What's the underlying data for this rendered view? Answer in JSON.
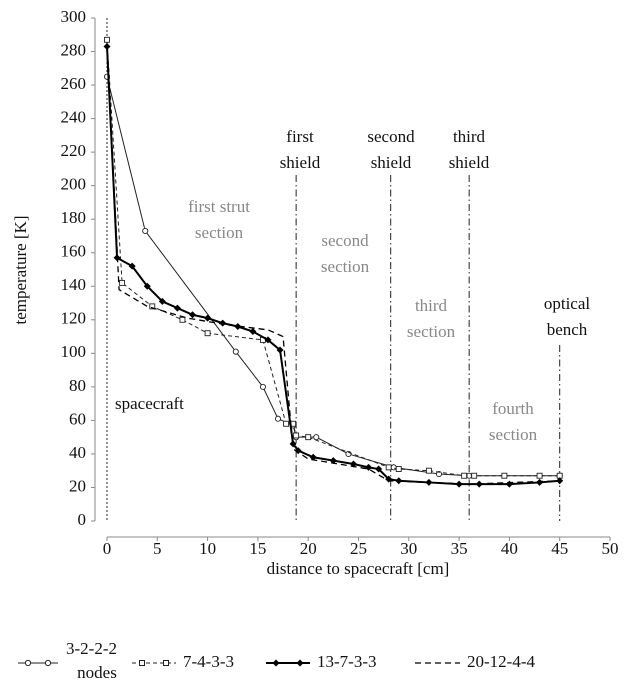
{
  "chart_data": {
    "type": "line",
    "x_label": "distance to spacecraft [cm]",
    "y_label": "temperature [K]",
    "xlim": [
      0,
      50
    ],
    "xticks": [
      0,
      5,
      10,
      15,
      20,
      25,
      30,
      35,
      40,
      45,
      50
    ],
    "ylim": [
      0,
      300
    ],
    "yticks": [
      0,
      20,
      40,
      60,
      80,
      100,
      120,
      140,
      160,
      180,
      200,
      220,
      240,
      260,
      280,
      300
    ],
    "legend_note": "nodes",
    "series": [
      {
        "name": "3-2-2-2",
        "color": "#222",
        "marker": "circle",
        "dash": "none",
        "width": 1,
        "x": [
          0,
          3.8,
          12.8,
          15.5,
          17,
          18.5,
          18.8,
          20.8,
          24,
          28.5,
          33,
          36,
          45
        ],
        "values": [
          265,
          173,
          101,
          80,
          61,
          57,
          50,
          50,
          40,
          32,
          28,
          27,
          27
        ]
      },
      {
        "name": "7-4-3-3",
        "color": "#222",
        "marker": "square",
        "dash": "4 3",
        "width": 1,
        "x": [
          0,
          1.5,
          4.5,
          7.5,
          10,
          15.5,
          17.8,
          18.5,
          18.8,
          20,
          28,
          29,
          32,
          35.5,
          36.5,
          39.5,
          43,
          45
        ],
        "values": [
          287,
          142,
          128,
          120,
          112,
          108,
          58,
          58,
          51,
          50,
          32,
          31,
          30,
          27,
          27,
          27,
          27,
          27
        ]
      },
      {
        "name": "13-7-3-3",
        "color": "#000",
        "marker": "diamond",
        "dash": "none",
        "width": 2,
        "x": [
          0,
          1,
          2.5,
          4,
          5.5,
          7,
          8.5,
          10,
          11.5,
          13,
          14.5,
          16,
          17.2,
          18.5,
          19,
          20.5,
          22.5,
          24.5,
          26,
          27,
          28,
          29,
          32,
          35,
          37,
          40,
          43,
          45
        ],
        "values": [
          283,
          157,
          152,
          140,
          131,
          127,
          123,
          121,
          118,
          116,
          113,
          108,
          102,
          46,
          42,
          38,
          36,
          34,
          32,
          31,
          25,
          24,
          23,
          22,
          22,
          22,
          23,
          24
        ]
      },
      {
        "name": "20-12-4-4",
        "color": "#000",
        "marker": "none",
        "dash": "6 4",
        "width": 1.3,
        "x": [
          0,
          1.2,
          4,
          8,
          12,
          16,
          17.5,
          18.5,
          20,
          26,
          28,
          36,
          45
        ],
        "values": [
          283,
          138,
          128,
          121,
          117,
          114,
          110,
          43,
          37,
          31,
          24,
          22,
          24
        ]
      }
    ],
    "vlines": [
      0,
      18.8,
      28.2,
      36,
      45
    ],
    "annotations": [
      {
        "lines": [
          "spacecraft"
        ],
        "gray": false
      },
      {
        "lines": [
          "first",
          "shield"
        ],
        "gray": false
      },
      {
        "lines": [
          "second",
          "shield"
        ],
        "gray": false
      },
      {
        "lines": [
          "third",
          "shield"
        ],
        "gray": false
      },
      {
        "lines": [
          "optical",
          "bench"
        ],
        "gray": false
      },
      {
        "lines": [
          "first strut",
          "section"
        ],
        "gray": true
      },
      {
        "lines": [
          "second",
          "section"
        ],
        "gray": true
      },
      {
        "lines": [
          "third",
          "section"
        ],
        "gray": true
      },
      {
        "lines": [
          "fourth",
          "section"
        ],
        "gray": true
      }
    ]
  }
}
